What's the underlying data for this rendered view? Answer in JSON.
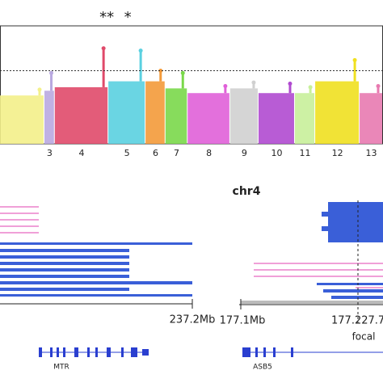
{
  "chart_data": {
    "type": "manhattan",
    "annotations": [
      "**",
      "*"
    ],
    "ylim": [
      0,
      10
    ],
    "xlim": [
      0,
      100
    ],
    "threshold": 6.2,
    "chromosomes": [
      {
        "label": null,
        "color": "#f3f08a",
        "start": 0,
        "end": 11.6,
        "top": 4.1,
        "peak": 4.6
      },
      {
        "label": "3",
        "color": "#b9a9e0",
        "start": 11.6,
        "end": 14.3,
        "top": 4.5,
        "peak": 6.0
      },
      {
        "label": "4",
        "color": "#e04a6a",
        "start": 14.3,
        "end": 28.3,
        "top": 4.8,
        "peak": 8.1
      },
      {
        "label": "5",
        "color": "#5ad0e0",
        "start": 28.3,
        "end": 38.0,
        "top": 5.3,
        "peak": 7.9
      },
      {
        "label": "6",
        "color": "#f39a3a",
        "start": 38.0,
        "end": 43.2,
        "top": 5.3,
        "peak": 6.2
      },
      {
        "label": "7",
        "color": "#7ad84a",
        "start": 43.2,
        "end": 49.0,
        "top": 4.7,
        "peak": 6.0
      },
      {
        "label": "8",
        "color": "#e060d8",
        "start": 49.0,
        "end": 60.1,
        "top": 4.3,
        "peak": 4.9
      },
      {
        "label": "9",
        "color": "#d0d0d0",
        "start": 60.1,
        "end": 67.5,
        "top": 4.7,
        "peak": 5.2
      },
      {
        "label": "10",
        "color": "#b04ad0",
        "start": 67.5,
        "end": 77.0,
        "top": 4.3,
        "peak": 5.1
      },
      {
        "label": "11",
        "color": "#c8f09a",
        "start": 77.0,
        "end": 82.3,
        "top": 4.3,
        "peak": 4.8
      },
      {
        "label": "12",
        "color": "#f0e020",
        "start": 82.3,
        "end": 93.9,
        "top": 5.3,
        "peak": 7.1
      },
      {
        "label": "13",
        "color": "#e87ab0",
        "start": 93.9,
        "end": 100,
        "top": 4.3,
        "peak": 4.9
      }
    ]
  },
  "tracks": {
    "right_title": "chr4",
    "left_end": "237.2Mb",
    "right_start": "177.1Mb",
    "right_focal_pos": "177.227.7",
    "focal": "focal",
    "left_gene": "MTR",
    "right_gene": "ASB5"
  }
}
